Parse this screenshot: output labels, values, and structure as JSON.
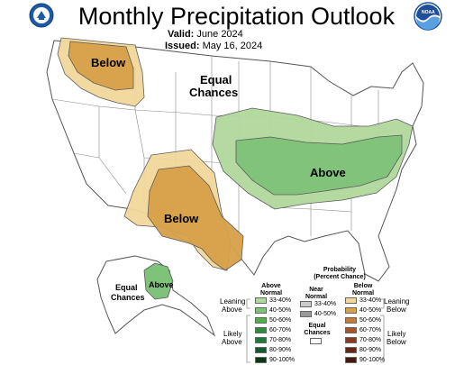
{
  "header": {
    "title": "Monthly Precipitation Outlook",
    "valid_label": "Valid:",
    "valid_value": "June 2024",
    "issued_label": "Issued:",
    "issued_value": "May 16, 2024"
  },
  "logos": {
    "left": {
      "icon": "doc-seal-icon",
      "color": "#1f5aa6"
    },
    "right": {
      "icon": "noaa-logo-icon",
      "text": "NOAA",
      "color": "#1f4e9c"
    }
  },
  "map_labels": {
    "nw": "Below",
    "center_top_1": "Equal",
    "center_top_2": "Chances",
    "east": "Above",
    "sw": "Below",
    "alaska_1": "Equal",
    "alaska_2": "Chances",
    "alaska_above": "Above"
  },
  "colors": {
    "above_33_40": "#b2d99d",
    "above_40_50": "#7fc27a",
    "below_33_40": "#f2d89a",
    "below_40_50": "#d8a14a",
    "outline": "#555555"
  },
  "legend": {
    "title_1": "Probability",
    "title_2": "(Percent Chance)",
    "col_above_1": "Above",
    "col_above_2": "Normal",
    "col_near_1": "Near",
    "col_near_2": "Normal",
    "col_below_1": "Below",
    "col_below_2": "Normal",
    "leaning_above_1": "Leaning",
    "leaning_above_2": "Above",
    "leaning_below_1": "Leaning",
    "leaning_below_2": "Below",
    "likely_above_1": "Likely",
    "likely_above_2": "Above",
    "likely_below_1": "Likely",
    "likely_below_2": "Below",
    "equal_1": "Equal",
    "equal_2": "Chances",
    "above_rows": [
      {
        "range": "33-40%",
        "color": "#b2d99d"
      },
      {
        "range": "40-50%",
        "color": "#7fc27a"
      },
      {
        "range": "50-60%",
        "color": "#52b04a"
      },
      {
        "range": "60-70%",
        "color": "#2e8b3c"
      },
      {
        "range": "70-80%",
        "color": "#1f7a3a"
      },
      {
        "range": "80-90%",
        "color": "#155c2c"
      },
      {
        "range": "90-100%",
        "color": "#0b3a18"
      }
    ],
    "near_rows": [
      {
        "range": "33-40%",
        "color": "#cccccc"
      },
      {
        "range": "40-50%",
        "color": "#999999"
      }
    ],
    "below_rows": [
      {
        "range": "33-40%",
        "color": "#f2d89a"
      },
      {
        "range": "40-50%",
        "color": "#d8a14a"
      },
      {
        "range": "50-60%",
        "color": "#c47a3a"
      },
      {
        "range": "60-70%",
        "color": "#a8552a"
      },
      {
        "range": "70-80%",
        "color": "#8a3a20"
      },
      {
        "range": "80-90%",
        "color": "#6a2614"
      },
      {
        "range": "90-100%",
        "color": "#4a180c"
      }
    ]
  }
}
